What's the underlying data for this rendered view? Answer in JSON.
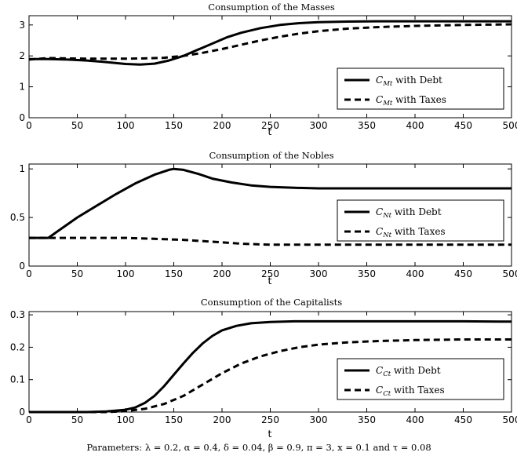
{
  "chart_data": [
    {
      "type": "line",
      "title": "Consumption of the Masses",
      "xlabel": "t",
      "ylabel": "",
      "xlim": [
        0,
        500
      ],
      "ylim": [
        0,
        3.3
      ],
      "xticks": [
        "0",
        "50",
        "100",
        "150",
        "200",
        "250",
        "300",
        "350",
        "400",
        "450",
        "500"
      ],
      "yticks": [
        "0",
        "1",
        "2",
        "3"
      ],
      "ytick_values": [
        0,
        1,
        2,
        3
      ],
      "grid": false,
      "legend_position": "lower-right",
      "series": [
        {
          "name": "C_Mt with Debt",
          "legend_sym": "C",
          "legend_sub": "Mt",
          "legend_rest": " with Debt",
          "style": "solid",
          "x": [
            0,
            20,
            40,
            60,
            80,
            100,
            115,
            130,
            145,
            160,
            175,
            190,
            205,
            220,
            240,
            260,
            280,
            300,
            330,
            360,
            400,
            450,
            500
          ],
          "y": [
            1.9,
            1.9,
            1.88,
            1.85,
            1.8,
            1.74,
            1.72,
            1.75,
            1.85,
            2.0,
            2.2,
            2.4,
            2.6,
            2.75,
            2.9,
            3.0,
            3.06,
            3.09,
            3.11,
            3.12,
            3.12,
            3.12,
            3.12
          ]
        },
        {
          "name": "C_Mt with Taxes",
          "legend_sym": "C",
          "legend_sub": "Mt",
          "legend_rest": " with Taxes",
          "style": "dashed",
          "x": [
            0,
            20,
            40,
            60,
            80,
            100,
            120,
            140,
            160,
            180,
            200,
            220,
            240,
            260,
            280,
            300,
            330,
            360,
            400,
            450,
            500
          ],
          "y": [
            1.88,
            1.93,
            1.92,
            1.91,
            1.91,
            1.91,
            1.92,
            1.94,
            2.0,
            2.1,
            2.22,
            2.36,
            2.5,
            2.62,
            2.72,
            2.8,
            2.88,
            2.93,
            2.97,
            3.0,
            3.02
          ]
        }
      ]
    },
    {
      "type": "line",
      "title": "Consumption of the Nobles",
      "xlabel": "t",
      "ylabel": "",
      "xlim": [
        0,
        500
      ],
      "ylim": [
        0,
        1.05
      ],
      "xticks": [
        "0",
        "50",
        "100",
        "150",
        "200",
        "250",
        "300",
        "350",
        "400",
        "450",
        "500"
      ],
      "yticks": [
        "0",
        "0.5",
        "1"
      ],
      "ytick_values": [
        0,
        0.5,
        1
      ],
      "grid": false,
      "legend_position": "lower-right",
      "series": [
        {
          "name": "C_Nt with Debt",
          "legend_sym": "C",
          "legend_sub": "Nt",
          "legend_rest": " with Debt",
          "style": "solid",
          "x": [
            0,
            20,
            30,
            50,
            70,
            90,
            110,
            130,
            145,
            150,
            160,
            175,
            190,
            210,
            230,
            250,
            275,
            300,
            350,
            400,
            450,
            500
          ],
          "y": [
            0.29,
            0.29,
            0.36,
            0.5,
            0.62,
            0.74,
            0.85,
            0.94,
            0.99,
            1.0,
            0.99,
            0.95,
            0.9,
            0.86,
            0.83,
            0.815,
            0.805,
            0.8,
            0.8,
            0.8,
            0.8,
            0.8
          ]
        },
        {
          "name": "C_Nt with Taxes",
          "legend_sym": "C",
          "legend_sub": "Nt",
          "legend_rest": " with Taxes",
          "style": "dashed",
          "x": [
            0,
            50,
            100,
            130,
            160,
            190,
            220,
            250,
            300,
            350,
            400,
            450,
            500
          ],
          "y": [
            0.29,
            0.29,
            0.29,
            0.28,
            0.27,
            0.25,
            0.23,
            0.22,
            0.22,
            0.22,
            0.22,
            0.22,
            0.22
          ]
        }
      ]
    },
    {
      "type": "line",
      "title": "Consumption of the Capitalists",
      "xlabel": "t",
      "ylabel": "",
      "xlim": [
        0,
        500
      ],
      "ylim": [
        0,
        0.31
      ],
      "xticks": [
        "0",
        "50",
        "100",
        "150",
        "200",
        "250",
        "300",
        "350",
        "400",
        "450",
        "500"
      ],
      "yticks": [
        "0",
        "0.1",
        "0.2",
        "0.3"
      ],
      "ytick_values": [
        0,
        0.1,
        0.2,
        0.3
      ],
      "grid": false,
      "legend_position": "lower-right",
      "series": [
        {
          "name": "C_Ct with Debt",
          "legend_sym": "C",
          "legend_sub": "Ct",
          "legend_rest": " with Debt",
          "style": "solid",
          "x": [
            0,
            60,
            80,
            100,
            110,
            120,
            130,
            140,
            150,
            160,
            170,
            180,
            190,
            200,
            215,
            230,
            250,
            275,
            300,
            350,
            400,
            450,
            500
          ],
          "y": [
            0,
            0,
            0.002,
            0.007,
            0.014,
            0.028,
            0.05,
            0.08,
            0.115,
            0.15,
            0.183,
            0.212,
            0.235,
            0.252,
            0.266,
            0.274,
            0.278,
            0.28,
            0.28,
            0.28,
            0.28,
            0.28,
            0.279
          ]
        },
        {
          "name": "C_Ct with Taxes",
          "legend_sym": "C",
          "legend_sub": "Ct",
          "legend_rest": " with Taxes",
          "style": "dashed",
          "x": [
            0,
            80,
            100,
            120,
            140,
            160,
            180,
            200,
            220,
            240,
            260,
            280,
            300,
            330,
            360,
            400,
            450,
            500
          ],
          "y": [
            0,
            0,
            0.003,
            0.01,
            0.025,
            0.05,
            0.085,
            0.12,
            0.15,
            0.172,
            0.188,
            0.2,
            0.208,
            0.215,
            0.219,
            0.222,
            0.224,
            0.224
          ]
        }
      ]
    }
  ],
  "caption": "Parameters: λ = 0.2, α = 0.4, δ = 0.04, β = 0.9, π = 3, x = 0.1 and τ = 0.08"
}
